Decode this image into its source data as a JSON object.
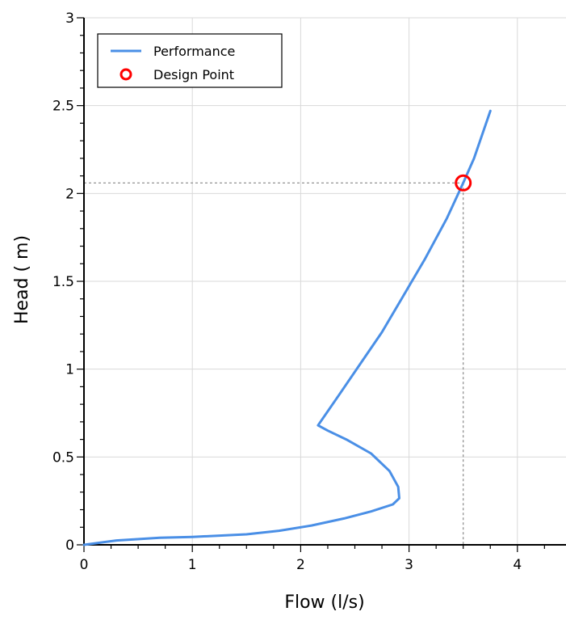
{
  "chart_data": {
    "type": "line",
    "xlabel": "Flow (l/s)",
    "ylabel": "Head ( m)",
    "xlim": [
      0,
      4.4
    ],
    "ylim": [
      0,
      3
    ],
    "x_ticks": [
      0,
      1,
      2,
      3,
      4
    ],
    "x_tick_labels": [
      "0",
      "1",
      "2",
      "3",
      "4"
    ],
    "x_minor_step": 0.25,
    "y_ticks": [
      0,
      0.5,
      1,
      1.5,
      2,
      2.5,
      3
    ],
    "y_tick_labels": [
      "0",
      "0.5",
      "1",
      "1.5",
      "2",
      "2.5",
      "3"
    ],
    "y_minor_step": 0.1,
    "grid": true,
    "legend_position": "top-left",
    "series": [
      {
        "name": "Performance",
        "color": "#4a8fe6",
        "x": [
          0.0,
          0.3,
          0.7,
          1.0,
          1.5,
          1.8,
          2.1,
          2.4,
          2.65,
          2.85,
          2.91,
          2.9,
          2.82,
          2.65,
          2.42,
          2.25,
          2.16,
          2.35,
          2.55,
          2.75,
          2.95,
          3.15,
          3.35,
          3.5,
          3.6,
          3.75
        ],
        "y": [
          0.0,
          0.025,
          0.04,
          0.045,
          0.06,
          0.08,
          0.11,
          0.15,
          0.19,
          0.23,
          0.265,
          0.33,
          0.42,
          0.52,
          0.6,
          0.65,
          0.68,
          0.85,
          1.03,
          1.21,
          1.42,
          1.63,
          1.86,
          2.06,
          2.2,
          2.47
        ]
      }
    ],
    "design_point": {
      "name": "Design Point",
      "x": 3.5,
      "y": 2.06,
      "color": "#ff0000"
    }
  }
}
